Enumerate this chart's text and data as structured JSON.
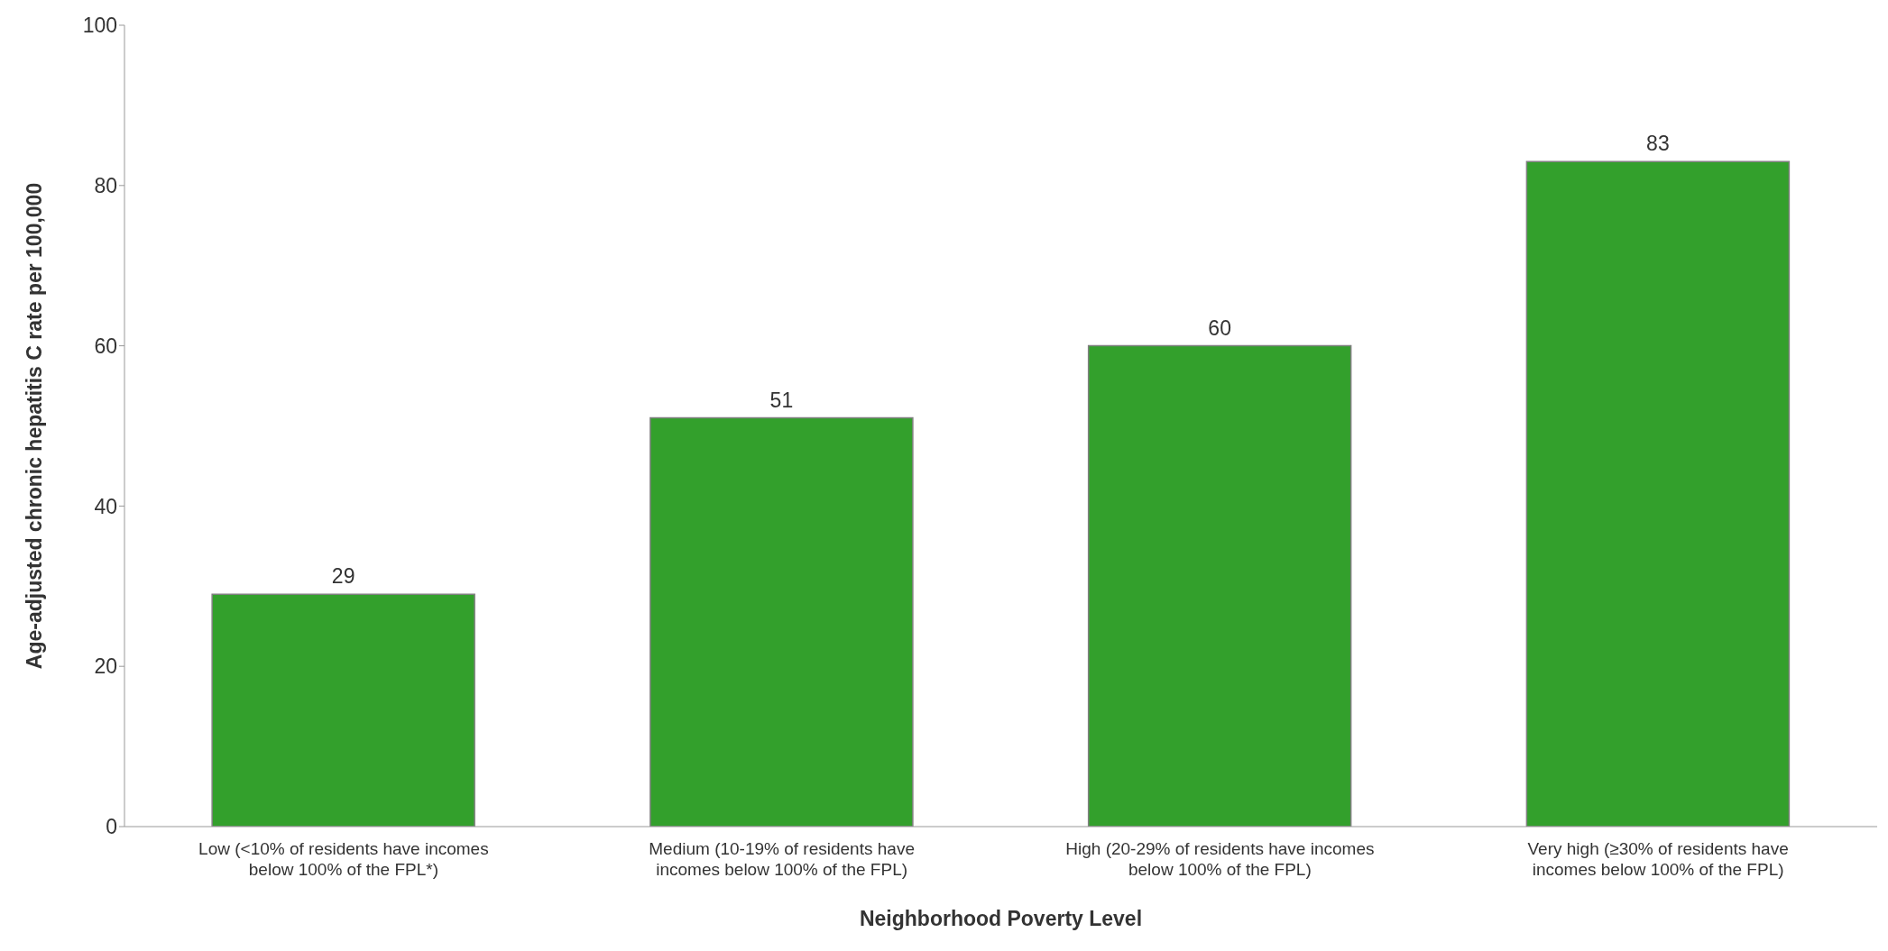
{
  "chart_data": {
    "type": "bar",
    "xlabel": "Neighborhood Poverty Level",
    "ylabel": "Age-adjusted chronic hepatitis C rate per 100,000",
    "categories": [
      "Low (<10% of residents have incomes below 100% of the FPL*)",
      "Medium (10-19% of residents have incomes below 100% of the FPL)",
      "High (20-29% of residents have incomes below 100% of the FPL)",
      "Very high (≥30% of residents have incomes below 100% of the FPL)"
    ],
    "values": [
      29,
      51,
      60,
      83
    ],
    "color": "#33a02c",
    "ylim": [
      0,
      100
    ],
    "yticks": [
      0,
      20,
      40,
      60,
      80,
      100
    ],
    "data_labels": true,
    "grid": false,
    "legend": false
  }
}
